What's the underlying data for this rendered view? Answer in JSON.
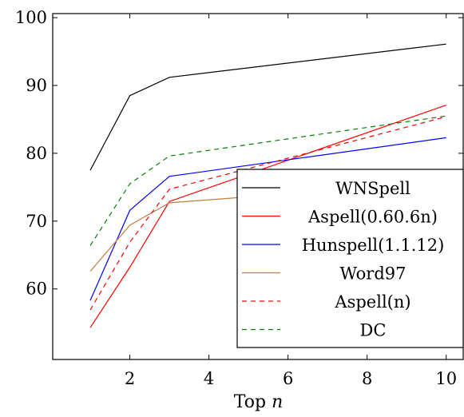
{
  "chart_data": {
    "type": "line",
    "xlabel_prefix": "Top ",
    "xlabel_var": "n",
    "ylabel": "",
    "xlim": [
      0.05,
      10.45
    ],
    "ylim": [
      49.6,
      100.6
    ],
    "xticks": [
      2,
      4,
      6,
      8,
      10
    ],
    "yticks": [
      60,
      70,
      80,
      90,
      100
    ],
    "grid": false,
    "legend_position": "bottom-right",
    "series": [
      {
        "name": "WNSpell",
        "color": "#000000",
        "dash": "solid",
        "x": [
          1,
          2,
          3,
          10
        ],
        "y": [
          77.5,
          88.5,
          91.2,
          96.1
        ]
      },
      {
        "name": "Aspell(0.60.6n)",
        "color": "#ff0000",
        "dash": "solid",
        "x": [
          1,
          2,
          3,
          10
        ],
        "y": [
          54.3,
          63.2,
          72.9,
          87.1
        ]
      },
      {
        "name": "Hunspell(1.1.12)",
        "color": "#0000ff",
        "dash": "solid",
        "x": [
          1,
          2,
          3,
          10
        ],
        "y": [
          58.3,
          71.6,
          76.6,
          82.3
        ]
      },
      {
        "name": "Word97",
        "color": "#c08040",
        "dash": "solid",
        "x": [
          1,
          2,
          3,
          10
        ],
        "y": [
          62.6,
          69.4,
          72.7,
          75.8
        ]
      },
      {
        "name": "Aspell(n)",
        "color": "#ff0000",
        "dash": "dashed",
        "x": [
          1,
          2,
          3,
          10
        ],
        "y": [
          56.9,
          66.9,
          74.7,
          85.4
        ]
      },
      {
        "name": "DC",
        "color": "#008000",
        "dash": "dashed",
        "x": [
          1,
          2,
          3,
          10
        ],
        "y": [
          66.4,
          75.5,
          79.6,
          85.5
        ]
      }
    ]
  }
}
